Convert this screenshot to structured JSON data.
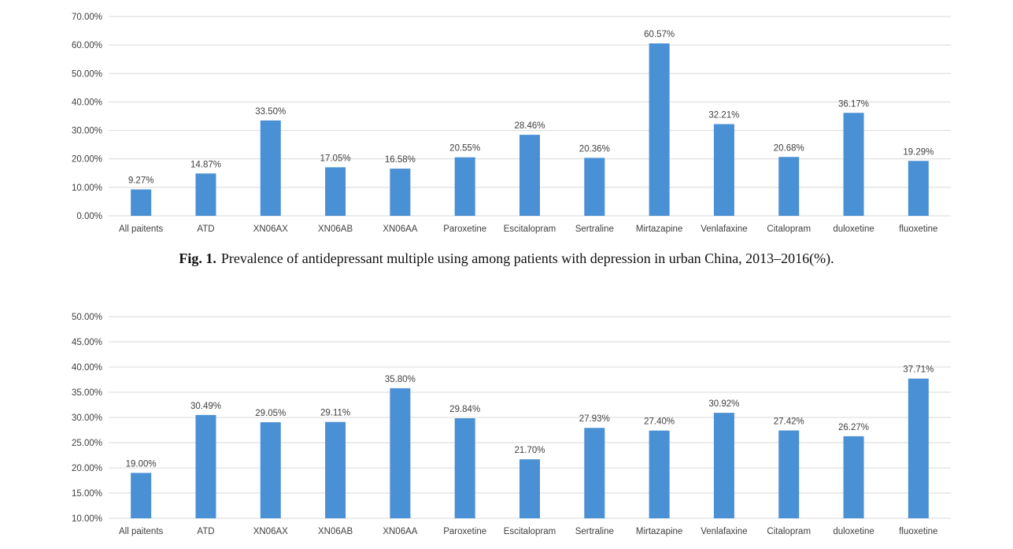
{
  "colors": {
    "bar": "#4a90d4",
    "grid": "#d9d9d9",
    "text": "#404040"
  },
  "caption": {
    "label": "Fig. 1.",
    "text": "Prevalence of antidepressant multiple using among patients with depression in urban China, 2013–2016(%)."
  },
  "chart_data": [
    {
      "type": "bar",
      "categories": [
        "All paitents",
        "ATD",
        "XN06AX",
        "XN06AB",
        "XN06AA",
        "Paroxetine",
        "Escitalopram",
        "Sertraline",
        "Mirtazapine",
        "Venlafaxine",
        "Citalopram",
        "duloxetine",
        "fluoxetine"
      ],
      "values": [
        9.27,
        14.87,
        33.5,
        17.05,
        16.58,
        20.55,
        28.46,
        20.36,
        60.57,
        32.21,
        20.68,
        36.17,
        19.29
      ],
      "data_labels": [
        "9.27%",
        "14.87%",
        "33.50%",
        "17.05%",
        "16.58%",
        "20.55%",
        "28.46%",
        "20.36%",
        "60.57%",
        "32.21%",
        "20.68%",
        "36.17%",
        "19.29%"
      ],
      "yticks": [
        0,
        10,
        20,
        30,
        40,
        50,
        60,
        70
      ],
      "ytick_labels": [
        "0.00%",
        "10.00%",
        "20.00%",
        "30.00%",
        "40.00%",
        "50.00%",
        "60.00%",
        "70.00%"
      ],
      "ylim": [
        0,
        70
      ],
      "grid": true,
      "legend": "none"
    },
    {
      "type": "bar",
      "categories": [
        "All paitents",
        "ATD",
        "XN06AX",
        "XN06AB",
        "XN06AA",
        "Paroxetine",
        "Escitalopram",
        "Sertraline",
        "Mirtazapine",
        "Venlafaxine",
        "Citalopram",
        "duloxetine",
        "fluoxetine"
      ],
      "values": [
        19.0,
        30.49,
        29.05,
        29.11,
        35.8,
        29.84,
        21.7,
        27.93,
        27.4,
        30.92,
        27.42,
        26.27,
        37.71
      ],
      "data_labels": [
        "19.00%",
        "30.49%",
        "29.05%",
        "29.11%",
        "35.80%",
        "29.84%",
        "21.70%",
        "27.93%",
        "27.40%",
        "30.92%",
        "27.42%",
        "26.27%",
        "37.71%"
      ],
      "yticks": [
        10,
        15,
        20,
        25,
        30,
        35,
        40,
        45,
        50
      ],
      "ytick_labels": [
        "10.00%",
        "15.00%",
        "20.00%",
        "25.00%",
        "30.00%",
        "35.00%",
        "40.00%",
        "45.00%",
        "50.00%"
      ],
      "ylim": [
        10,
        50
      ],
      "grid": true,
      "legend": "none"
    }
  ]
}
